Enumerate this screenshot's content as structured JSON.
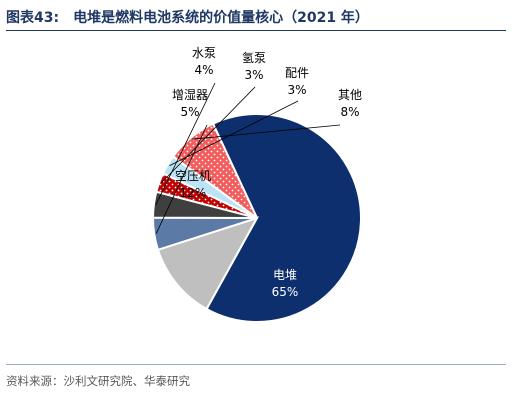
{
  "figure": {
    "label": "图表43:",
    "title": "电堆是燃料电池系统的价值量核心（2021 年）",
    "source": "资料来源：沙利文研究院、华泰研究"
  },
  "chart_data": {
    "type": "pie",
    "title": "电堆是燃料电池系统的价值量核心（2021 年）",
    "unit": "%",
    "slices": [
      {
        "label": "电堆",
        "value": 65,
        "display": "65%",
        "color": "#0e2f6e",
        "pattern": "solid"
      },
      {
        "label": "空压机",
        "value": 12,
        "display": "12%",
        "color": "#bfbfbf",
        "pattern": "solid"
      },
      {
        "label": "增湿器",
        "value": 5,
        "display": "5%",
        "color": "#5b7aa6",
        "pattern": "solid"
      },
      {
        "label": "水泵",
        "value": 4,
        "display": "4%",
        "color": "#3f3f3f",
        "pattern": "solid"
      },
      {
        "label": "氢泵",
        "value": 3,
        "display": "3%",
        "color": "#c00000",
        "pattern": "dotted"
      },
      {
        "label": "配件",
        "value": 3,
        "display": "3%",
        "color": "#bde4f4",
        "pattern": "solid"
      },
      {
        "label": "其他",
        "value": 8,
        "display": "8%",
        "color": "#f25c5c",
        "pattern": "dotted"
      }
    ]
  }
}
